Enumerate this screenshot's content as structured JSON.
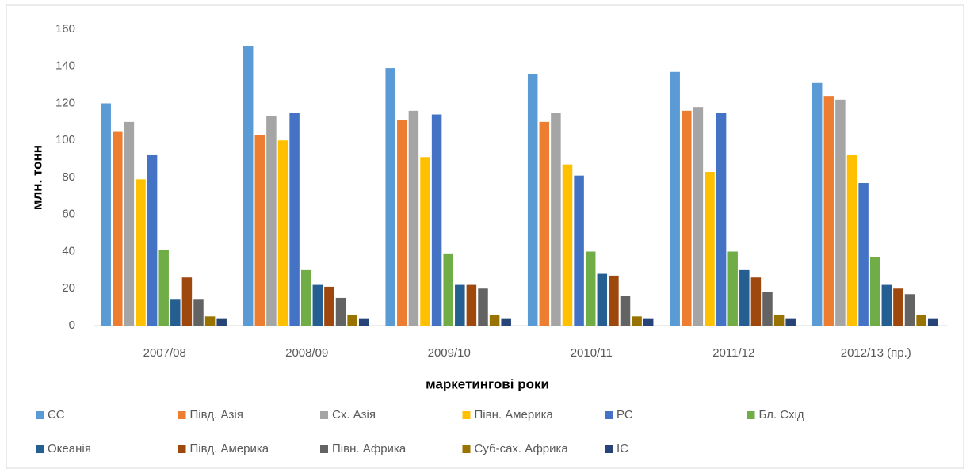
{
  "chart_data": {
    "type": "bar",
    "x_label": "маркетингові роки",
    "y_label": "млн. тонн",
    "categories": [
      "2007/08",
      "2008/09",
      "2009/10",
      "2010/11",
      "2011/12",
      "2012/13 (пр.)"
    ],
    "series": [
      {
        "name": "ЄС",
        "color": "#5b9bd5",
        "values": [
          120,
          151,
          139,
          136,
          137,
          131
        ]
      },
      {
        "name": "Півд. Азія",
        "color": "#ed7d31",
        "values": [
          105,
          103,
          111,
          110,
          116,
          124
        ]
      },
      {
        "name": "Сх. Азія",
        "color": "#a5a5a5",
        "values": [
          110,
          113,
          116,
          115,
          118,
          122
        ]
      },
      {
        "name": "Півн. Америка",
        "color": "#ffc000",
        "values": [
          79,
          100,
          91,
          87,
          83,
          92
        ]
      },
      {
        "name": "РС",
        "color": "#4472c4",
        "values": [
          92,
          115,
          114,
          81,
          115,
          77
        ]
      },
      {
        "name": "Бл. Схід",
        "color": "#70ad47",
        "values": [
          41,
          30,
          39,
          40,
          40,
          37
        ]
      },
      {
        "name": "Океанія",
        "color": "#255e91",
        "values": [
          14,
          22,
          22,
          28,
          30,
          22
        ]
      },
      {
        "name": "Півд. Америка",
        "color": "#9e480e",
        "values": [
          26,
          21,
          22,
          27,
          26,
          20
        ]
      },
      {
        "name": "Півн. Африка",
        "color": "#636363",
        "values": [
          14,
          15,
          20,
          16,
          18,
          17
        ]
      },
      {
        "name": "Суб-сах. Африка",
        "color": "#997300",
        "values": [
          5,
          6,
          6,
          5,
          6,
          6
        ]
      },
      {
        "name": "ІЄ",
        "color": "#264478",
        "values": [
          4,
          4,
          4,
          4,
          4,
          4
        ]
      }
    ],
    "ylim": [
      0,
      160
    ],
    "yticks": [
      0,
      20,
      40,
      60,
      80,
      100,
      120,
      140,
      160
    ],
    "grid": false,
    "legend": "bottom"
  }
}
